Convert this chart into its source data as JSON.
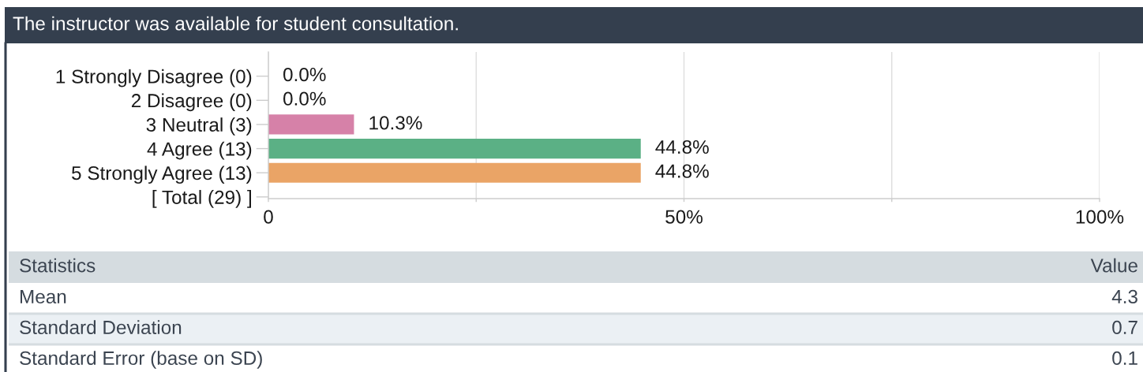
{
  "chart_data": [
    {
      "type": "bar",
      "orientation": "horizontal",
      "title": "The instructor was available for student consultation.",
      "categories": [
        "1 Strongly Disagree (0)",
        "2 Disagree (0)",
        "3 Neutral (3)",
        "4 Agree (13)",
        "5 Strongly Agree (13)",
        "[ Total (29) ]"
      ],
      "values": [
        0,
        0,
        10.3,
        44.8,
        44.8,
        null
      ],
      "colors": [
        null,
        null,
        "#d681a8",
        "#5bb085",
        "#eaa466",
        null
      ],
      "value_labels": [
        "0.0%",
        "0.0%",
        "10.3%",
        "44.8%",
        "44.8%",
        null
      ],
      "xlim": [
        0,
        100
      ],
      "xticks": [
        0,
        {
          "value": 25,
          "label": null
        },
        {
          "value": 50,
          "label": "50%"
        },
        {
          "value": 75,
          "label": null
        },
        {
          "value": 100,
          "label": "100%"
        }
      ],
      "grid": "x"
    },
    {
      "type": "other",
      "annotations": [
        "Statistics",
        "Value"
      ],
      "categories": [
        "Mean",
        "Standard Deviation",
        "Standard Error (base on SD)"
      ],
      "values": [
        4.3,
        0.7,
        0.1
      ],
      "data_labels": true
    }
  ]
}
